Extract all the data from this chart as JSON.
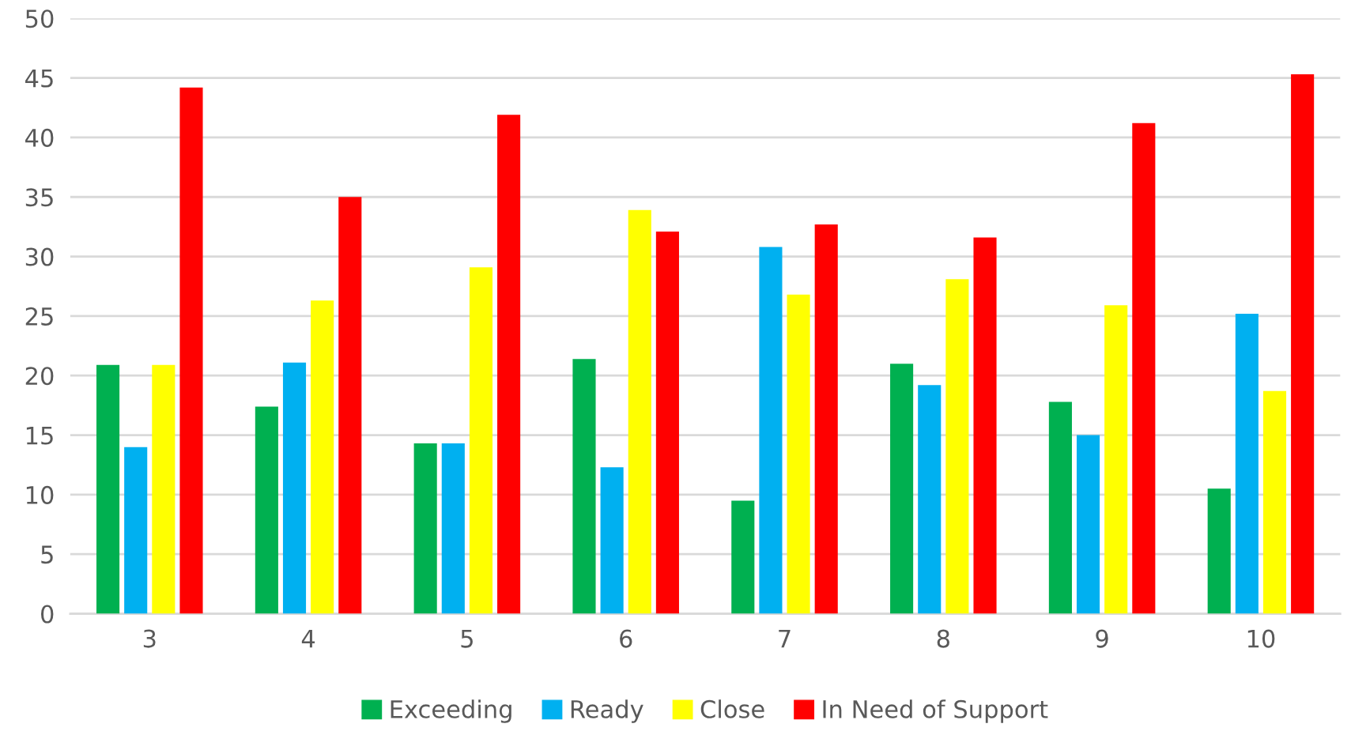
{
  "chart_data": {
    "type": "bar",
    "categories": [
      "3",
      "4",
      "5",
      "6",
      "7",
      "8",
      "9",
      "10"
    ],
    "series": [
      {
        "name": "Exceeding",
        "color": "#00b050",
        "values": [
          20.9,
          17.4,
          14.3,
          21.4,
          9.5,
          21.0,
          17.8,
          10.5
        ]
      },
      {
        "name": "Ready",
        "color": "#00b0f0",
        "values": [
          14.0,
          21.1,
          14.3,
          12.3,
          30.8,
          19.2,
          15.0,
          25.2
        ]
      },
      {
        "name": "Close",
        "color": "#ffff00",
        "values": [
          20.9,
          26.3,
          29.1,
          33.9,
          26.8,
          28.1,
          25.9,
          18.7
        ]
      },
      {
        "name": "In Need of Support",
        "color": "#ff0000",
        "values": [
          44.2,
          35.0,
          41.9,
          32.1,
          32.7,
          31.6,
          41.2,
          45.3
        ]
      }
    ],
    "ylim": [
      0,
      50
    ],
    "yticks": [
      0,
      5,
      10,
      15,
      20,
      25,
      30,
      35,
      40,
      45,
      50
    ],
    "grid": "y",
    "legend": "bottom"
  }
}
